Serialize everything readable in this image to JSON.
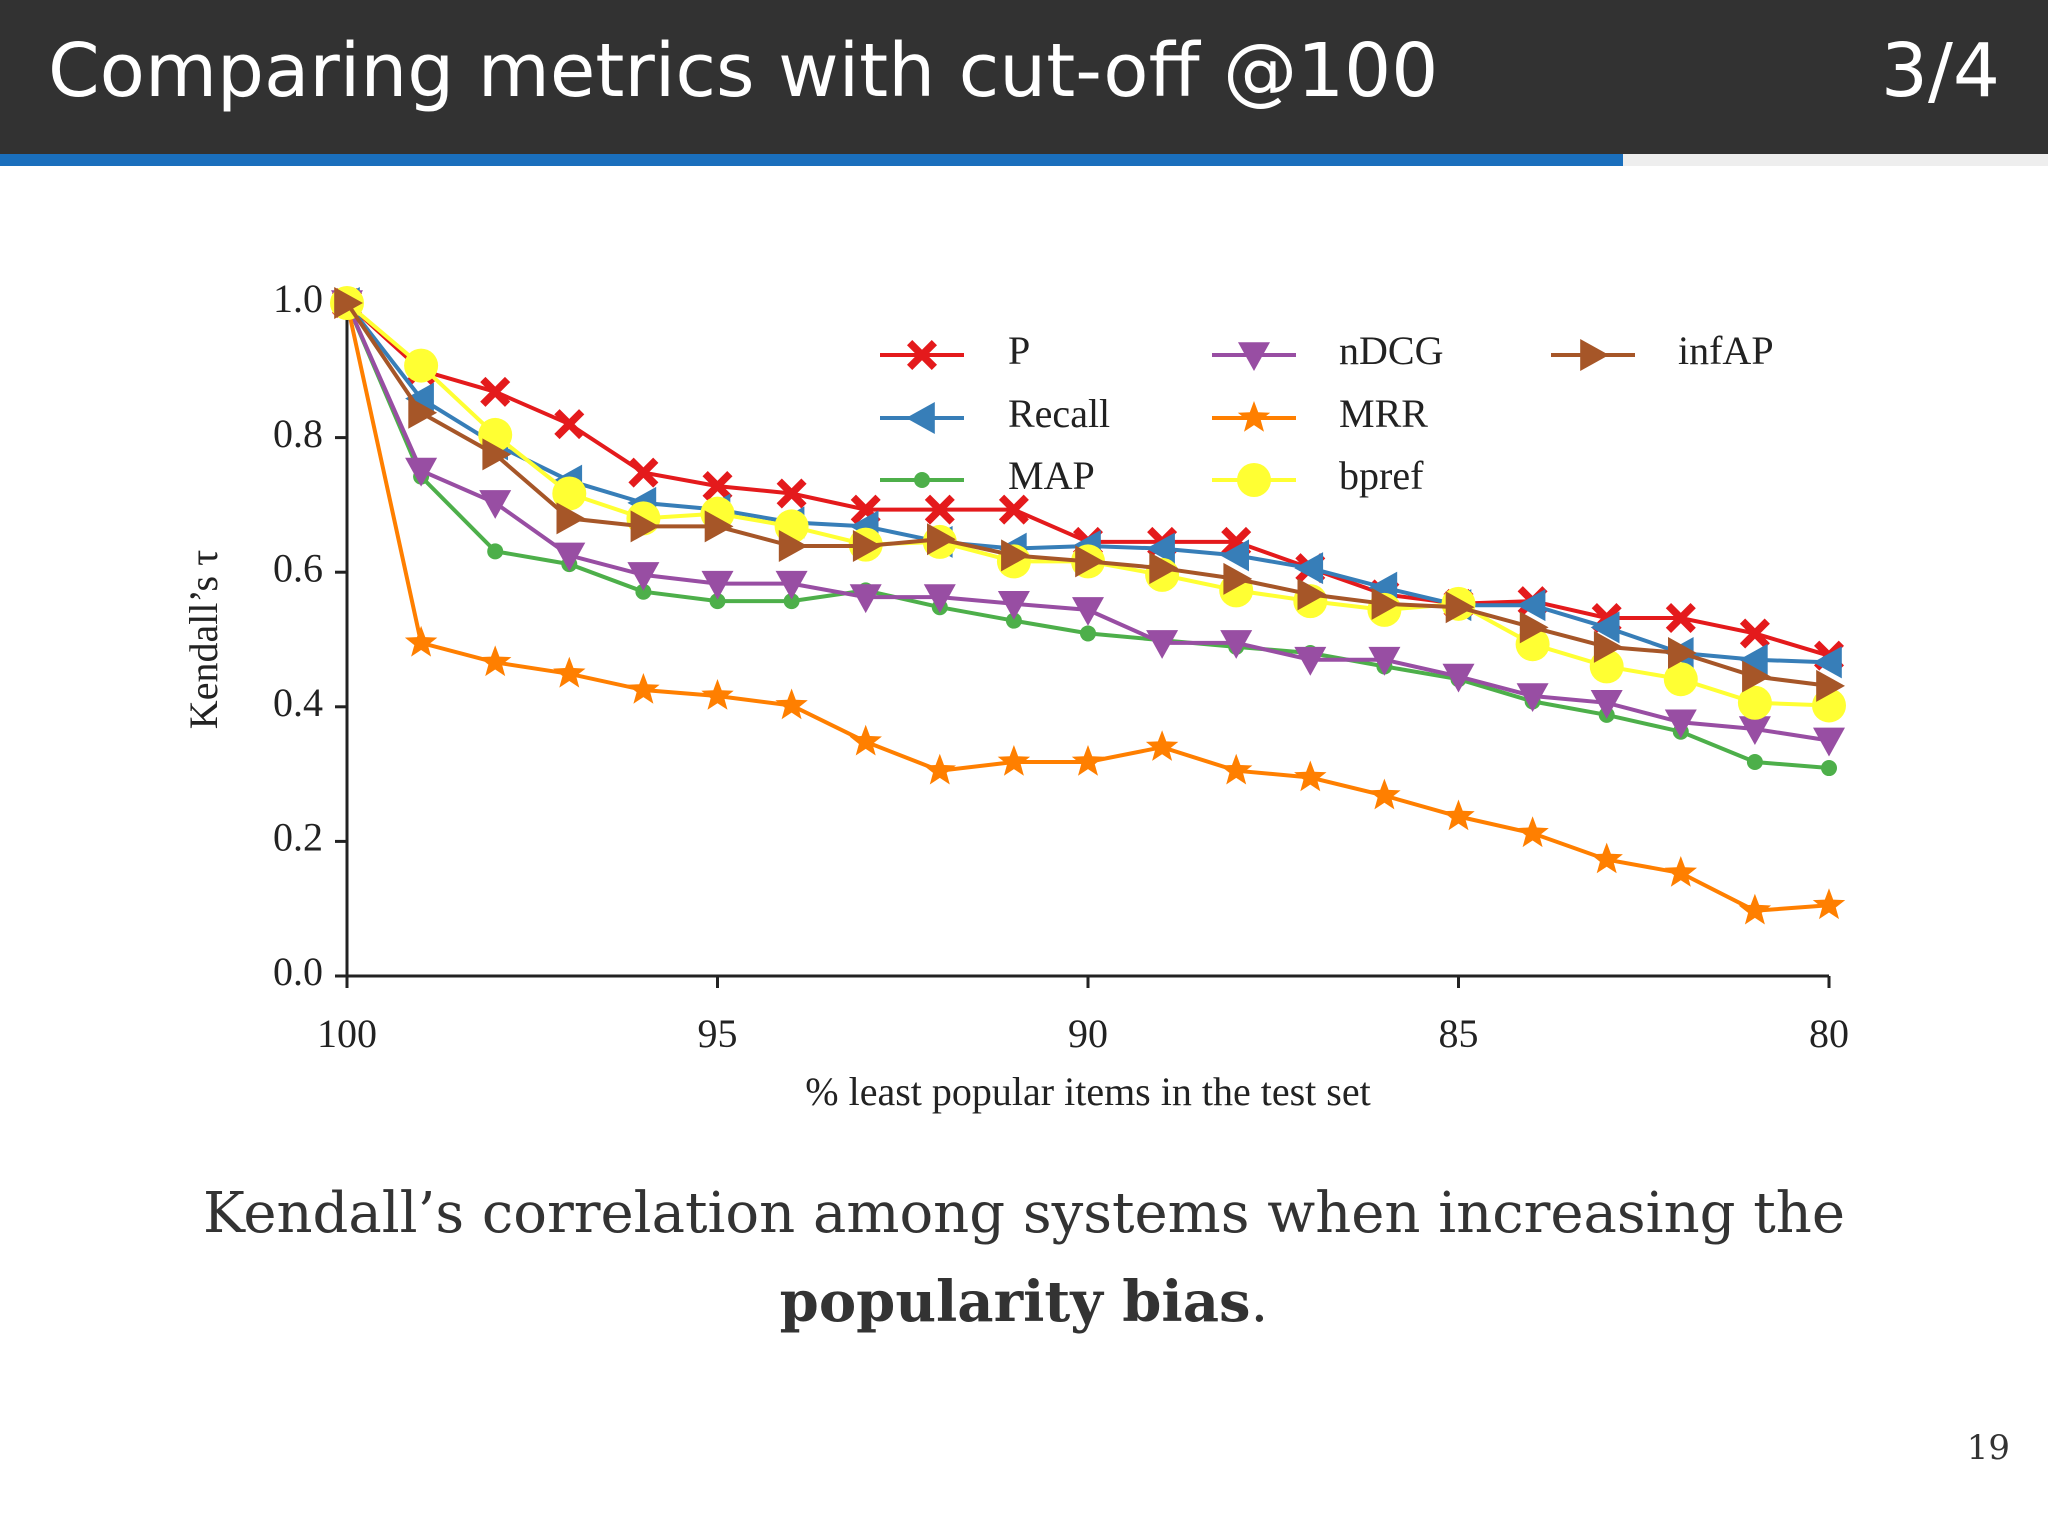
{
  "header": {
    "title": "Comparing metrics with cut-off @100",
    "progress": "3/4"
  },
  "chart_data": {
    "type": "line",
    "x_label": "% least popular items in the test set",
    "y_label": "Kendall’s τ",
    "x": [
      100,
      99,
      98,
      97,
      96,
      95,
      94,
      93,
      92,
      91,
      90,
      89,
      88,
      87,
      86,
      85,
      84,
      83,
      82,
      81,
      80
    ],
    "xlim": [
      100,
      80
    ],
    "xticks": [
      100,
      95,
      90,
      85,
      80
    ],
    "ylim": [
      0,
      1
    ],
    "yticks": [
      {
        "value": 0,
        "label": "0.0"
      },
      0.2,
      0.4,
      0.6,
      0.8,
      {
        "value": 1,
        "label": "1.0"
      }
    ],
    "grid": false,
    "legend": "upper right",
    "series": [
      {
        "name": "P",
        "color": "#e41a1c",
        "marker": "X",
        "values": [
          1.0,
          0.9,
          0.868,
          0.82,
          0.748,
          0.728,
          0.717,
          0.693,
          0.693,
          0.693,
          0.645,
          0.645,
          0.645,
          0.606,
          0.567,
          0.553,
          0.557,
          0.532,
          0.532,
          0.509,
          0.476
        ]
      },
      {
        "name": "Recall",
        "color": "#377eb8",
        "marker": "<",
        "values": [
          1.0,
          0.858,
          0.79,
          0.736,
          0.703,
          0.693,
          0.674,
          0.668,
          0.645,
          0.635,
          0.639,
          0.635,
          0.625,
          0.606,
          0.577,
          0.551,
          0.551,
          0.518,
          0.48,
          0.47,
          0.466
        ]
      },
      {
        "name": "MAP",
        "color": "#4daf4a",
        "marker": ".",
        "values": [
          1.0,
          0.742,
          0.631,
          0.612,
          0.571,
          0.557,
          0.557,
          0.573,
          0.548,
          0.528,
          0.509,
          0.499,
          0.489,
          0.48,
          0.46,
          0.441,
          0.408,
          0.388,
          0.363,
          0.318,
          0.309
        ]
      },
      {
        "name": "nDCG",
        "color": "#984ea3",
        "marker": "v",
        "values": [
          1.0,
          0.751,
          0.703,
          0.625,
          0.596,
          0.583,
          0.583,
          0.563,
          0.563,
          0.553,
          0.544,
          0.495,
          0.495,
          0.47,
          0.47,
          0.445,
          0.416,
          0.406,
          0.377,
          0.367,
          0.35
        ]
      },
      {
        "name": "MRR",
        "color": "#ff7f00",
        "marker": "*",
        "values": [
          1.0,
          0.495,
          0.466,
          0.449,
          0.425,
          0.416,
          0.402,
          0.348,
          0.305,
          0.318,
          0.318,
          0.34,
          0.305,
          0.295,
          0.268,
          0.237,
          0.212,
          0.173,
          0.153,
          0.097,
          0.105
        ]
      },
      {
        "name": "bpref",
        "color": "#ffff33",
        "marker": "o",
        "values": [
          1.0,
          0.907,
          0.804,
          0.717,
          0.68,
          0.687,
          0.668,
          0.641,
          0.645,
          0.616,
          0.616,
          0.596,
          0.573,
          0.557,
          0.544,
          0.553,
          0.493,
          0.46,
          0.441,
          0.406,
          0.402
        ]
      },
      {
        "name": "infAP",
        "color": "#a65628",
        "marker": ">",
        "values": [
          1.0,
          0.837,
          0.775,
          0.68,
          0.668,
          0.668,
          0.639,
          0.639,
          0.649,
          0.625,
          0.616,
          0.606,
          0.59,
          0.567,
          0.553,
          0.548,
          0.518,
          0.489,
          0.48,
          0.445,
          0.431
        ]
      }
    ]
  },
  "caption": {
    "text": "Kendall’s correlation among systems when increasing the",
    "bold": "popularity bias",
    "end": "."
  },
  "page_number": "19"
}
